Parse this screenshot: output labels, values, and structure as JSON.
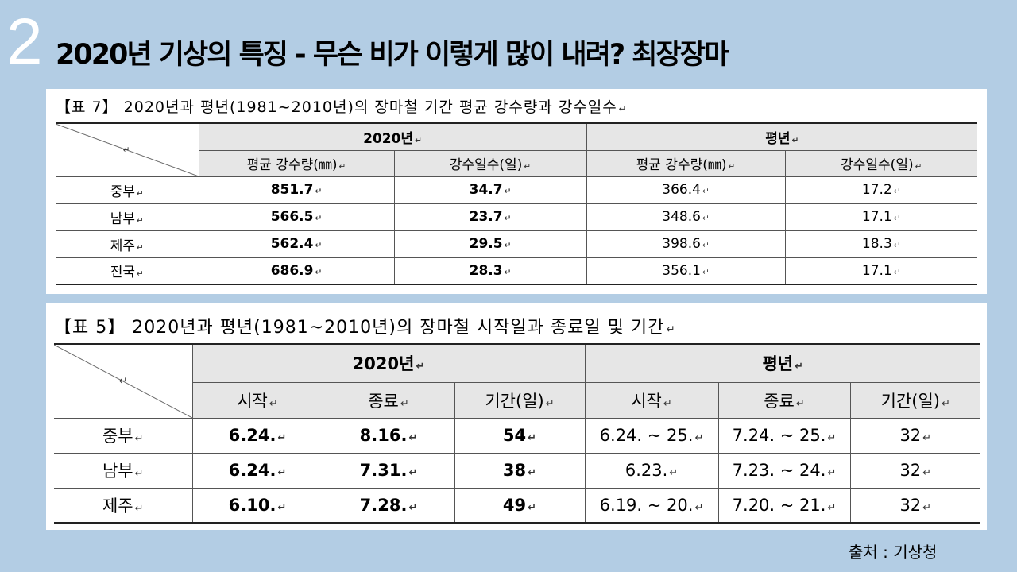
{
  "slide": {
    "number": "2",
    "title": "2020년 기상의 특징  - 무슨 비가 이렇게 많이 내려? 최장장마"
  },
  "return_mark": "↵",
  "table7": {
    "caption": "【표 7】 2020년과 평년(1981~2010년)의 장마철 기간 평균 강수량과 강수일수",
    "group_2020": "2020년",
    "group_normal": "평년",
    "sub_headers": [
      "평균 강수량(㎜)",
      "강수일수(일)",
      "평균 강수량(㎜)",
      "강수일수(일)"
    ],
    "rows": [
      {
        "region": "중부",
        "precip_2020": "851.7",
        "days_2020": "34.7",
        "precip_normal": "366.4",
        "days_normal": "17.2"
      },
      {
        "region": "남부",
        "precip_2020": "566.5",
        "days_2020": "23.7",
        "precip_normal": "348.6",
        "days_normal": "17.1"
      },
      {
        "region": "제주",
        "precip_2020": "562.4",
        "days_2020": "29.5",
        "precip_normal": "398.6",
        "days_normal": "18.3"
      },
      {
        "region": "전국",
        "precip_2020": "686.9",
        "days_2020": "28.3",
        "precip_normal": "356.1",
        "days_normal": "17.1"
      }
    ]
  },
  "table5": {
    "caption": "【표 5】 2020년과 평년(1981~2010년)의 장마철 시작일과 종료일 및 기간",
    "group_2020": "2020년",
    "group_normal": "평년",
    "sub_headers": [
      "시작",
      "종료",
      "기간(일)",
      "시작",
      "종료",
      "기간(일)"
    ],
    "rows": [
      {
        "region": "중부",
        "start_2020": "6.24.",
        "end_2020": "8.16.",
        "period_2020": "54",
        "start_normal": "6.24. ~ 25.",
        "end_normal": "7.24. ~ 25.",
        "period_normal": "32"
      },
      {
        "region": "남부",
        "start_2020": "6.24.",
        "end_2020": "7.31.",
        "period_2020": "38",
        "start_normal": "6.23.",
        "end_normal": "7.23. ~ 24.",
        "period_normal": "32"
      },
      {
        "region": "제주",
        "start_2020": "6.10.",
        "end_2020": "7.28.",
        "period_2020": "49",
        "start_normal": "6.19. ~ 20.",
        "end_normal": "7.20. ~ 21.",
        "period_normal": "32"
      }
    ]
  },
  "source": "출처 : 기상청"
}
